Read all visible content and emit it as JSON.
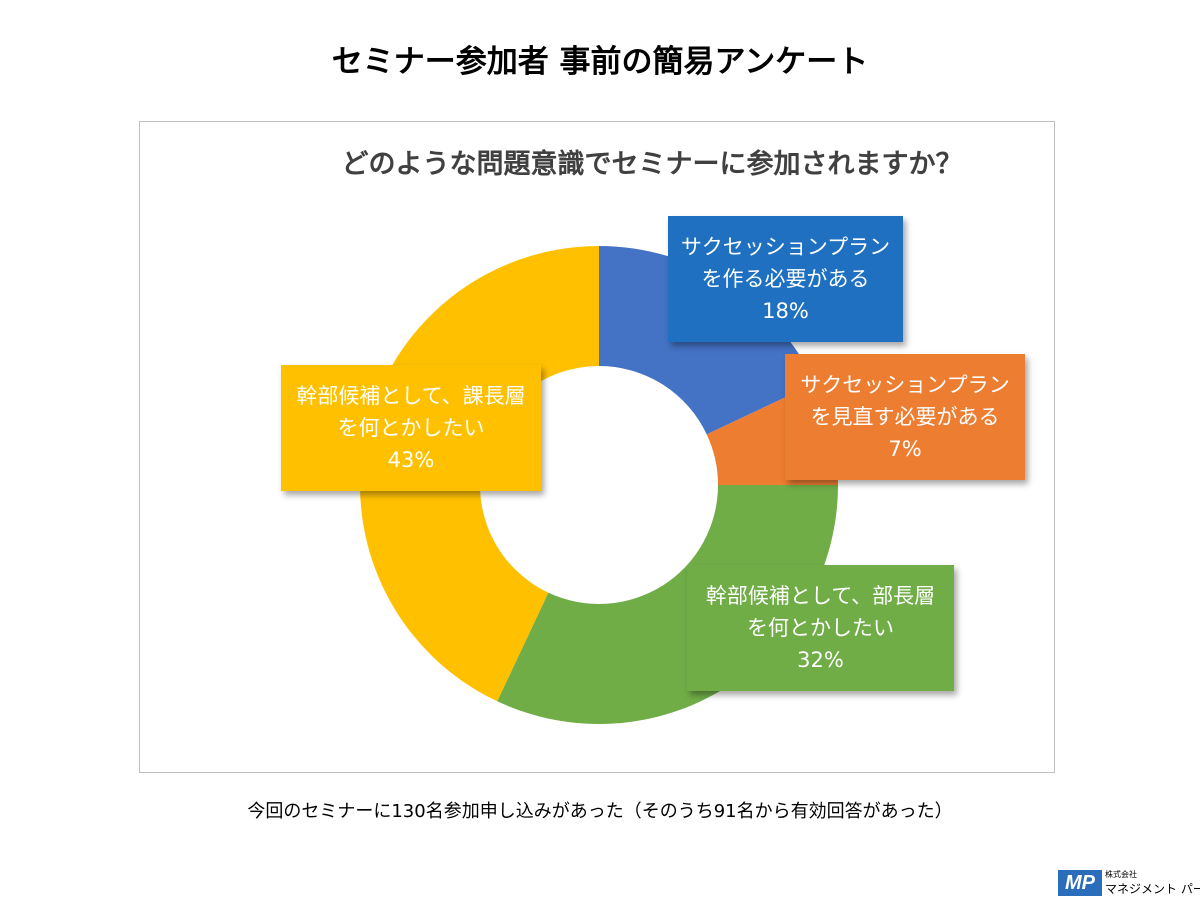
{
  "page_title": "セミナー参加者 事前の簡易アンケート",
  "footnote": "今回のセミナーに130名参加申し込みがあった（そのうち91名から有効回答があった）",
  "logo": {
    "mark": "MP",
    "small_text": "株式会社",
    "name": "マネジメント パートナー"
  },
  "chart_data": {
    "type": "pie",
    "variant": "donut",
    "title": "どのような問題意識でセミナーに参加されますか？",
    "unit": "%",
    "slices": [
      {
        "label": "サクセッションプラン\nを作る必要がある",
        "value": 18,
        "value_label": "18%",
        "color": "#4472c4",
        "label_bg": "#1f70c1"
      },
      {
        "label": "サクセッションプラン\nを見直す必要がある",
        "value": 7,
        "value_label": "7%",
        "color": "#ed7d31",
        "label_bg": "#ed7d31"
      },
      {
        "label": "幹部候補として、部長層\nを何とかしたい",
        "value": 32,
        "value_label": "32%",
        "color": "#70ad47",
        "label_bg": "#70ad47"
      },
      {
        "label": "幹部候補として、課長層\nを何とかしたい",
        "value": 43,
        "value_label": "43%",
        "color": "#ffc000",
        "label_bg": "#ffc000"
      }
    ]
  }
}
